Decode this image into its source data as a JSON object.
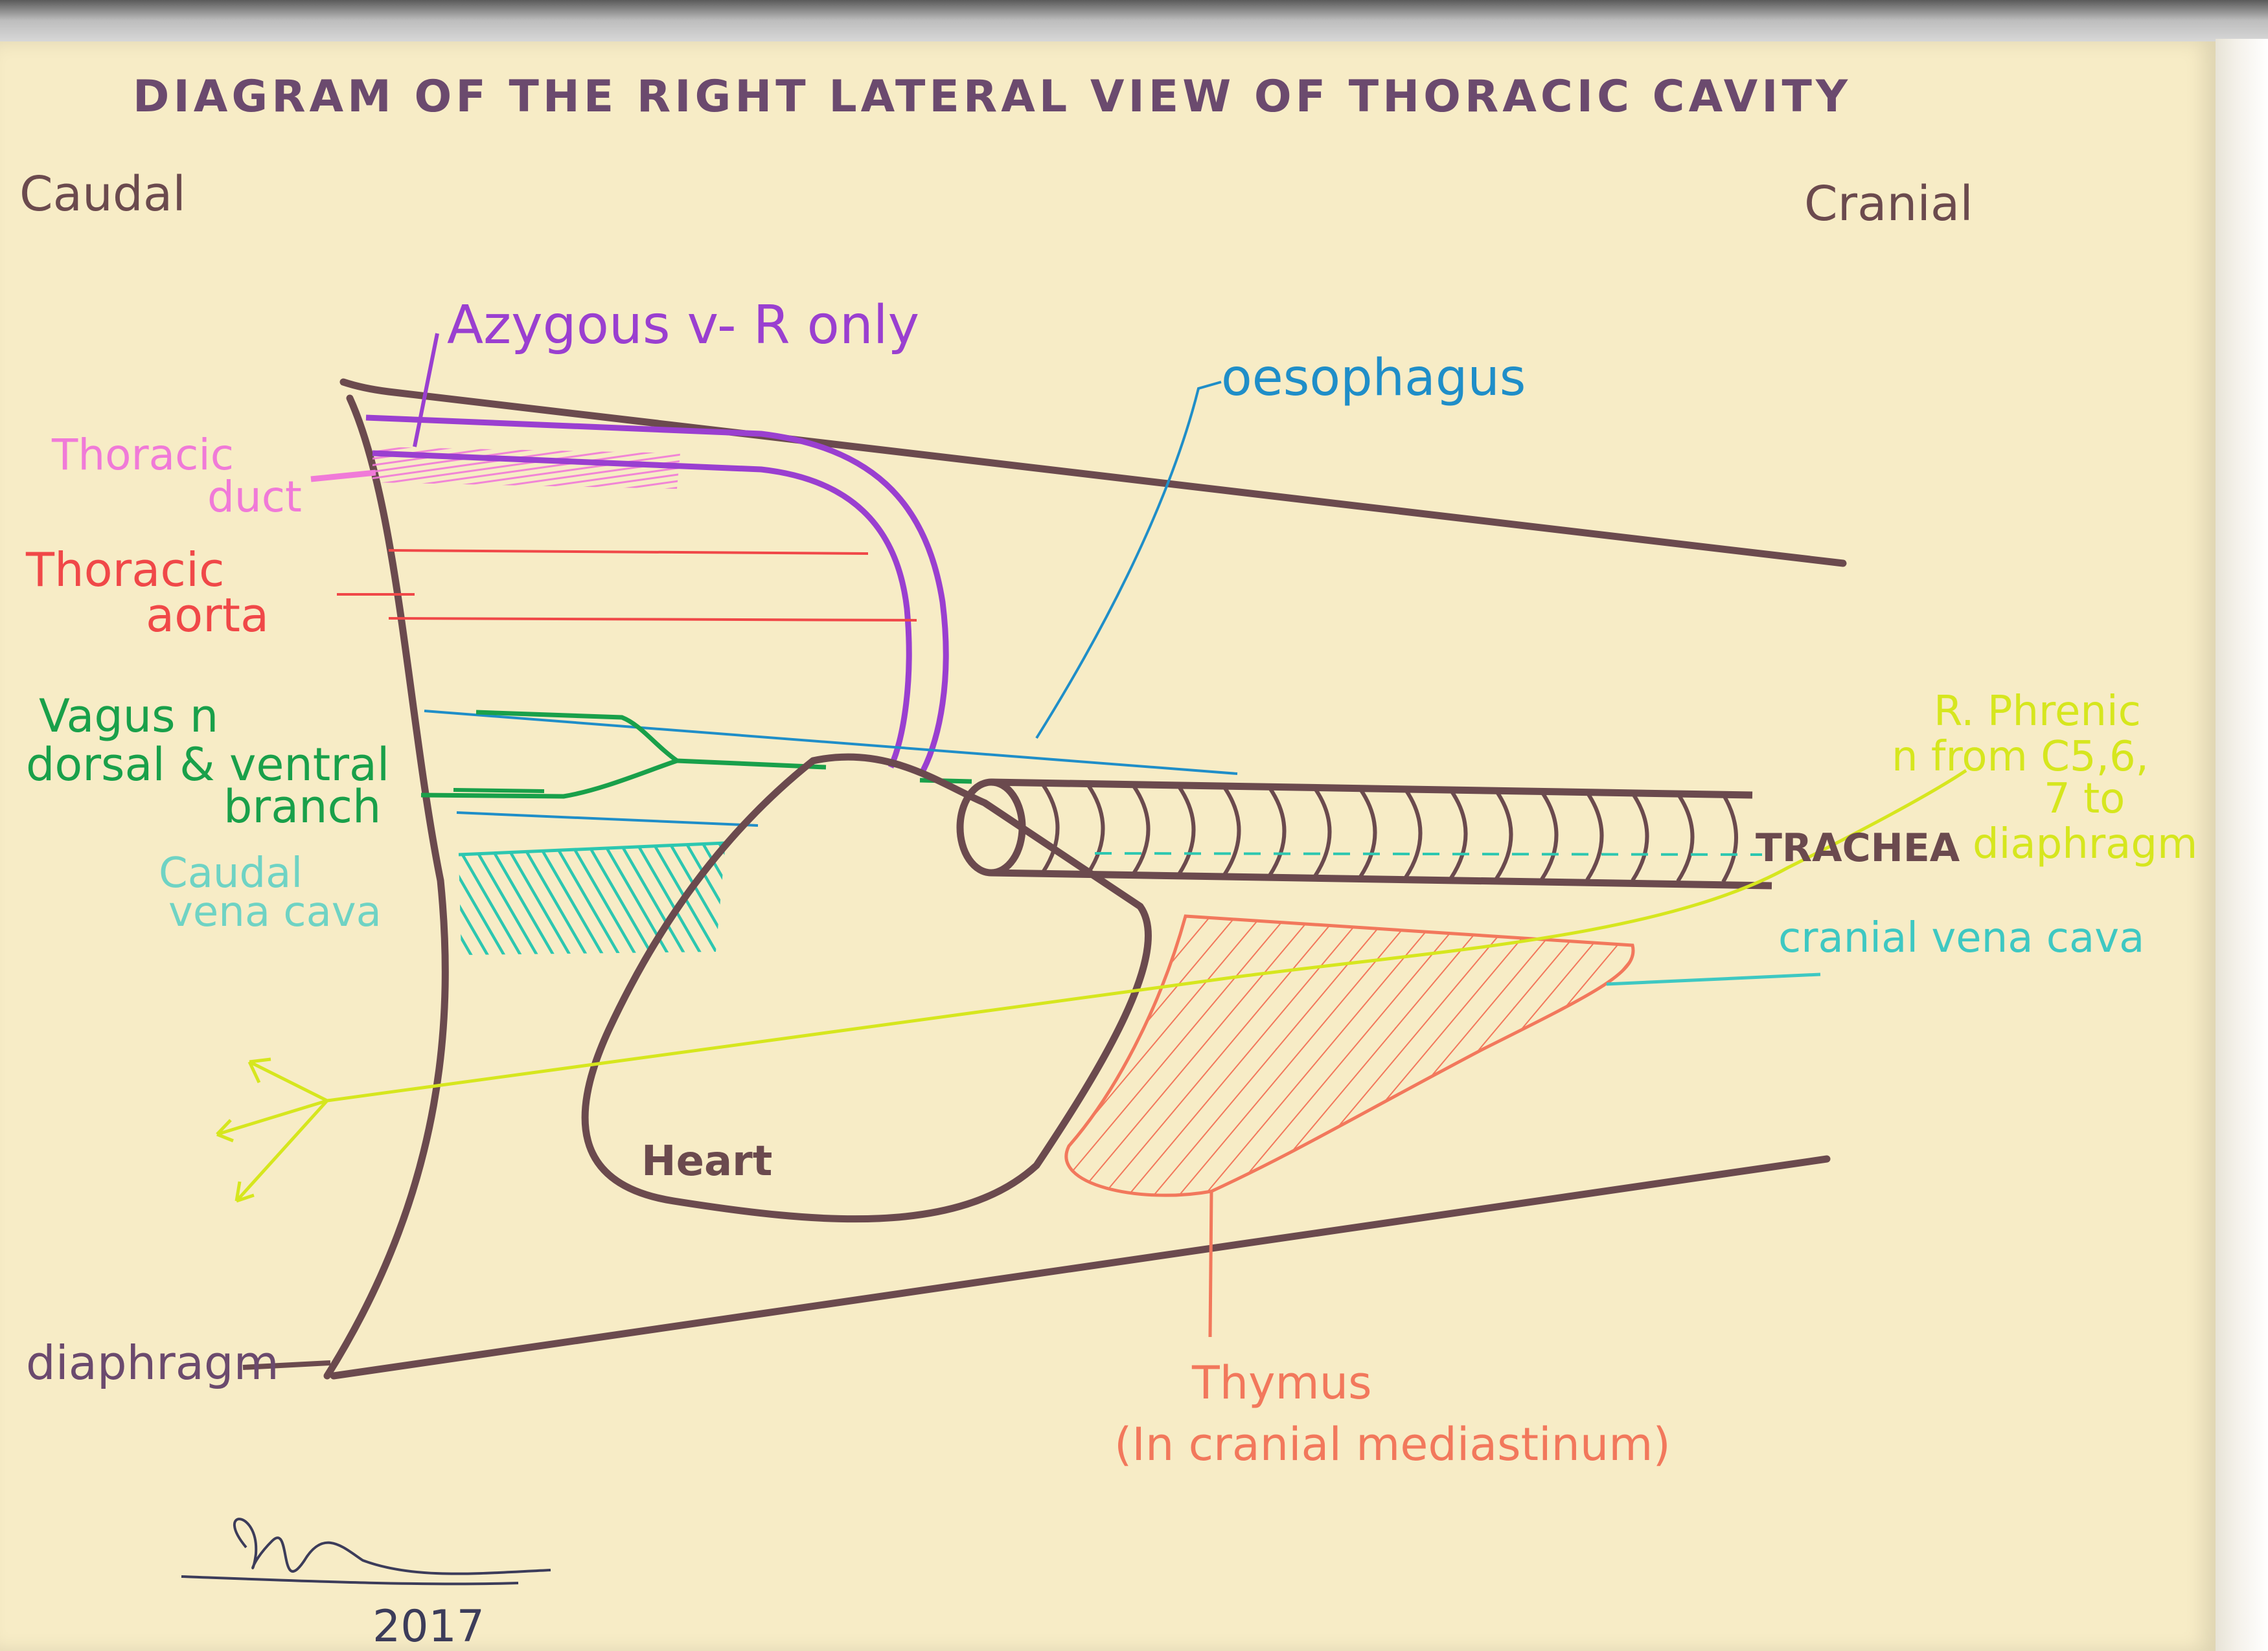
{
  "title": "DIAGRAM OF THE RIGHT LATERAL VIEW OF THORACIC CAVITY",
  "orientation": {
    "left": "Caudal",
    "right": "Cranial"
  },
  "labels": {
    "azygous": "Azygous v- R only",
    "oesophagus": "oesophagus",
    "thoracic_duct": [
      "Thoracic",
      "duct"
    ],
    "thoracic_aorta": [
      "Thoracic",
      "aorta"
    ],
    "vagus": [
      "Vagus n",
      "dorsal & ventral",
      "branch"
    ],
    "caudal_vena_cava": [
      "Caudal",
      "vena cava"
    ],
    "phrenic": [
      "R. Phrenic",
      "n from C5,6,",
      "7 to",
      "diaphragm"
    ],
    "trachea": "TRACHEA",
    "cranial_vena_cava": "cranial vena cava",
    "heart": "Heart",
    "diaphragm": "diaphragm",
    "thymus": [
      "Thymus",
      "(In cranial mediastinum)"
    ]
  },
  "signature": {
    "year": "2017"
  },
  "colors": {
    "outline": "#6b4a4e",
    "azygous": "#9a3fd0",
    "thoracic_duct": "#f07ad8",
    "aorta": "#f04848",
    "vagus": "#19a04a",
    "oesophagus": "#1f8ec8",
    "caudal_vena_cava": "#2cc7b0",
    "cranial_vena_cava": "#3ec8c2",
    "phrenic": "#d6e61e",
    "thymus": "#f2785c",
    "title": "#6b4a6e"
  }
}
